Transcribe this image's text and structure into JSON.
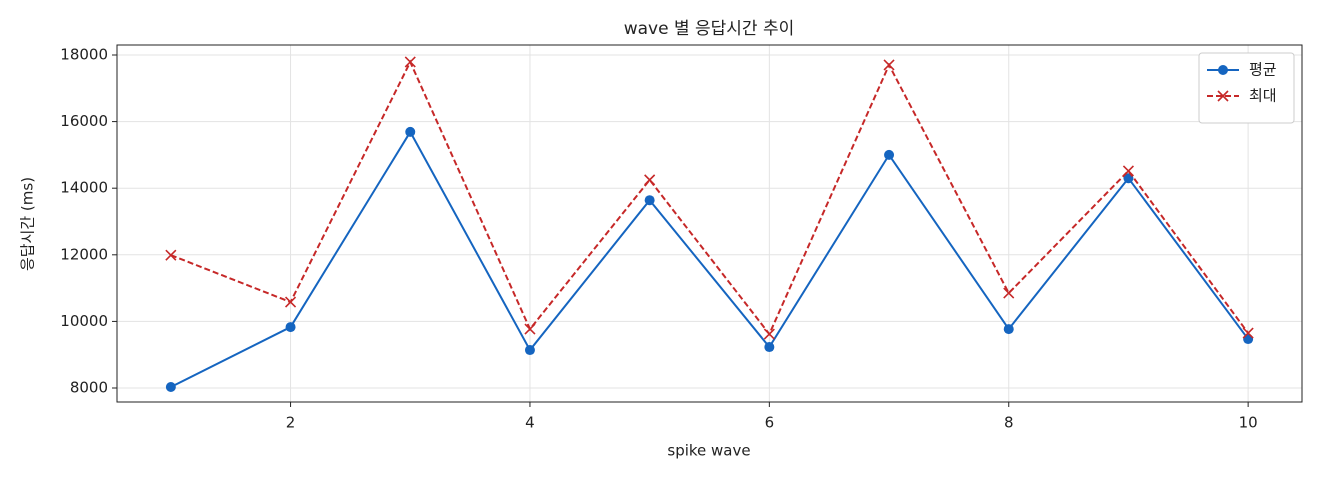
{
  "chart_data": {
    "type": "line",
    "title": "wave 별 응답시간 추이",
    "xlabel": "spike wave",
    "ylabel": "응답시간 (ms)",
    "x": [
      1,
      2,
      3,
      4,
      5,
      6,
      7,
      8,
      9,
      10
    ],
    "series": [
      {
        "name": "평균",
        "color": "#1565c0",
        "linestyle": "solid",
        "marker": "circle",
        "values": [
          8030,
          9830,
          15690,
          9140,
          13640,
          9230,
          15000,
          9770,
          14300,
          9470
        ]
      },
      {
        "name": "최대",
        "color": "#c62828",
        "linestyle": "dashed",
        "marker": "x",
        "values": [
          11990,
          10580,
          17790,
          9770,
          14250,
          9620,
          17700,
          10850,
          14520,
          9650
        ]
      }
    ],
    "xlim": [
      0.55,
      10.45
    ],
    "xticks": [
      2,
      4,
      6,
      8,
      10
    ],
    "ylim": [
      7580,
      18300
    ],
    "yticks": [
      8000,
      10000,
      12000,
      14000,
      16000,
      18000
    ],
    "grid": true,
    "legend": "upper right"
  }
}
